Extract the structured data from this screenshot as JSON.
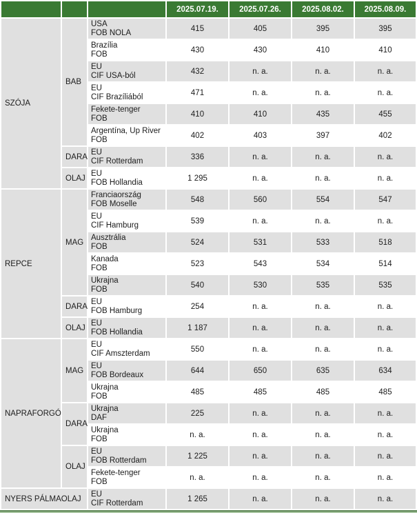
{
  "colors": {
    "header_green": "#3a7a33",
    "row_gray": "#e0e0e0",
    "row_white": "#ffffff",
    "header_text": "#ffffff",
    "body_text": "#1c1c1c",
    "bottom_line_dark": "#55804c",
    "bottom_line_light": "#a9c5a2"
  },
  "chart_data": {
    "type": "table",
    "column_headers": [
      "2025.07.19.",
      "2025.07.26.",
      "2025.08.02.",
      "2025.08.09."
    ],
    "na_text": "n. a.",
    "groups": [
      {
        "name": "SZÓJA",
        "merge_sub": false,
        "subgroups": [
          {
            "name": "BAB",
            "rows": [
              {
                "place": "USA",
                "terms": "FOB NOLA",
                "values": [
                  "415",
                  "405",
                  "395",
                  "395"
                ]
              },
              {
                "place": "Brazília",
                "terms": "FOB",
                "values": [
                  "430",
                  "430",
                  "410",
                  "410"
                ]
              },
              {
                "place": "EU",
                "terms": "CIF USA-ból",
                "values": [
                  "432",
                  "n. a.",
                  "n. a.",
                  "n. a."
                ]
              },
              {
                "place": "EU",
                "terms": "CIF Brazíliából",
                "values": [
                  "471",
                  "n. a.",
                  "n. a.",
                  "n. a."
                ]
              },
              {
                "place": "Fekete-tenger",
                "terms": "FOB",
                "values": [
                  "410",
                  "410",
                  "435",
                  "455"
                ]
              },
              {
                "place": "Argentína, Up River",
                "terms": "FOB",
                "values": [
                  "402",
                  "403",
                  "397",
                  "402"
                ]
              }
            ]
          },
          {
            "name": "DARA",
            "rows": [
              {
                "place": "EU",
                "terms": "CIF Rotterdam",
                "values": [
                  "336",
                  "n. a.",
                  "n. a.",
                  "n. a."
                ]
              }
            ]
          },
          {
            "name": "OLAJ",
            "rows": [
              {
                "place": "EU",
                "terms": "FOB Hollandia",
                "values": [
                  "1 295",
                  "n. a.",
                  "n. a.",
                  "n. a."
                ]
              }
            ]
          }
        ]
      },
      {
        "name": "REPCE",
        "merge_sub": false,
        "subgroups": [
          {
            "name": "MAG",
            "rows": [
              {
                "place": "Franciaország",
                "terms": "FOB Moselle",
                "values": [
                  "548",
                  "560",
                  "554",
                  "547"
                ]
              },
              {
                "place": "EU",
                "terms": "CIF Hamburg",
                "values": [
                  "539",
                  "n. a.",
                  "n. a.",
                  "n. a."
                ]
              },
              {
                "place": "Ausztrália",
                "terms": "FOB",
                "values": [
                  "524",
                  "531",
                  "533",
                  "518"
                ]
              },
              {
                "place": "Kanada",
                "terms": "FOB",
                "values": [
                  "523",
                  "543",
                  "534",
                  "514"
                ]
              },
              {
                "place": "Ukrajna",
                "terms": "FOB",
                "values": [
                  "540",
                  "530",
                  "535",
                  "535"
                ]
              }
            ]
          },
          {
            "name": "DARA",
            "rows": [
              {
                "place": "EU",
                "terms": "FOB Hamburg",
                "values": [
                  "254",
                  "n. a.",
                  "n. a.",
                  "n. a."
                ]
              }
            ]
          },
          {
            "name": "OLAJ",
            "rows": [
              {
                "place": "EU",
                "terms": "FOB Hollandia",
                "values": [
                  "1 187",
                  "n. a.",
                  "n. a.",
                  "n. a."
                ]
              }
            ]
          }
        ]
      },
      {
        "name": "NAPRAFORGÓ",
        "merge_sub": false,
        "subgroups": [
          {
            "name": "MAG",
            "rows": [
              {
                "place": "EU",
                "terms": "CIF Amszterdam",
                "values": [
                  "550",
                  "n. a.",
                  "n. a.",
                  "n. a."
                ]
              },
              {
                "place": "EU",
                "terms": "FOB Bordeaux",
                "values": [
                  "644",
                  "650",
                  "635",
                  "634"
                ]
              },
              {
                "place": "Ukrajna",
                "terms": "FOB",
                "values": [
                  "485",
                  "485",
                  "485",
                  "485"
                ]
              }
            ]
          },
          {
            "name": "DARA",
            "rows": [
              {
                "place": "Ukrajna",
                "terms": "DAF",
                "values": [
                  "225",
                  "n. a.",
                  "n. a.",
                  "n. a."
                ]
              },
              {
                "place": "Ukrajna",
                "terms": "FOB",
                "values": [
                  "n. a.",
                  "n. a.",
                  "n. a.",
                  "n. a."
                ]
              }
            ]
          },
          {
            "name": "OLAJ",
            "rows": [
              {
                "place": "EU",
                "terms": "FOB Rotterdam",
                "values": [
                  "1 225",
                  "n. a.",
                  "n. a.",
                  "n. a."
                ]
              },
              {
                "place": "Fekete-tenger",
                "terms": "FOB",
                "values": [
                  "n. a.",
                  "n. a.",
                  "n. a.",
                  "n. a."
                ]
              }
            ]
          }
        ]
      },
      {
        "name": "NYERS PÁLMAOLAJ",
        "merge_sub": true,
        "subgroups": [
          {
            "name": "",
            "rows": [
              {
                "place": "EU",
                "terms": "CIF Rotterdam",
                "values": [
                  "1 265",
                  "n. a.",
                  "n. a.",
                  "n. a."
                ]
              }
            ]
          }
        ]
      }
    ]
  }
}
